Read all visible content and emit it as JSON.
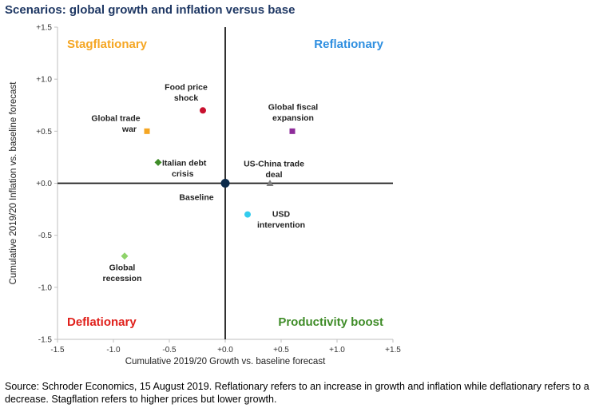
{
  "title": "Scenarios: global growth and inflation versus base",
  "source": "Source: Schroder Economics, 15 August 2019. Reflationary refers to an increase in growth and inflation while deflationary refers to a decrease. Stagflation refers to higher prices but lower growth.",
  "chart_data": {
    "type": "scatter",
    "xlabel": "Cumulative 2019/20 Growth vs. baseline forecast",
    "ylabel": "Cumulative 2019/20 Inflation vs. baseline forecast",
    "xlim": [
      -1.5,
      1.5
    ],
    "ylim": [
      -1.5,
      1.5
    ],
    "x_ticks": [
      {
        "value": -1.5,
        "label": "-1.5"
      },
      {
        "value": -1.0,
        "label": "-1.0"
      },
      {
        "value": -0.5,
        "label": "-0.5"
      },
      {
        "value": 0.0,
        "label": "+0.0"
      },
      {
        "value": 0.5,
        "label": "+0.5"
      },
      {
        "value": 1.0,
        "label": "+1.0"
      },
      {
        "value": 1.5,
        "label": "+1.5"
      }
    ],
    "y_ticks": [
      {
        "value": 1.5,
        "label": "+1.5"
      },
      {
        "value": 1.0,
        "label": "+1.0"
      },
      {
        "value": 0.5,
        "label": "+0.5"
      },
      {
        "value": 0.0,
        "label": "+0.0"
      },
      {
        "value": -0.5,
        "label": "-0.5"
      },
      {
        "value": -1.0,
        "label": "-1.0"
      },
      {
        "value": -1.5,
        "label": "-1.5"
      }
    ],
    "grid": false,
    "quadrants": [
      {
        "label": "Stagflationary",
        "position": "top-left",
        "color": "#f5a623"
      },
      {
        "label": "Reflationary",
        "position": "top-right",
        "color": "#2f8fe0"
      },
      {
        "label": "Deflationary",
        "position": "bottom-left",
        "color": "#e0201b"
      },
      {
        "label": "Productivity boost",
        "position": "bottom-right",
        "color": "#3f8c28"
      }
    ],
    "points": [
      {
        "name": "Food price shock",
        "lines": [
          "Food price",
          "shock"
        ],
        "x": -0.2,
        "y": 0.7,
        "marker": "circle",
        "color": "#c8102e",
        "label_pos": "above"
      },
      {
        "name": "Global trade war",
        "lines": [
          "Global trade",
          "war"
        ],
        "x": -0.7,
        "y": 0.5,
        "marker": "square",
        "color": "#f5a623",
        "label_pos": "left"
      },
      {
        "name": "Global fiscal expansion",
        "lines": [
          "Global fiscal",
          "expansion"
        ],
        "x": 0.6,
        "y": 0.5,
        "marker": "square",
        "color": "#8e2c9a",
        "label_pos": "above"
      },
      {
        "name": "Italian debt crisis",
        "lines": [
          "Italian debt",
          "crisis"
        ],
        "x": -0.6,
        "y": 0.2,
        "marker": "diamond",
        "color": "#3f8c28",
        "label_pos": "right"
      },
      {
        "name": "Baseline",
        "lines": [
          "Baseline"
        ],
        "x": 0.0,
        "y": 0.0,
        "marker": "circle-large",
        "color": "#0b2a4a",
        "label_pos": "below-left"
      },
      {
        "name": "US-China trade deal",
        "lines": [
          "US-China trade",
          "deal"
        ],
        "x": 0.4,
        "y": 0.0,
        "marker": "triangle",
        "color": "#7f7f7f",
        "label_pos": "above"
      },
      {
        "name": "USD intervention",
        "lines": [
          "USD",
          "intervention"
        ],
        "x": 0.2,
        "y": -0.3,
        "marker": "circle",
        "color": "#33ccee",
        "label_pos": "below-right"
      },
      {
        "name": "Global recession",
        "lines": [
          "Global",
          "recession"
        ],
        "x": -0.9,
        "y": -0.7,
        "marker": "diamond",
        "color": "#8fd36a",
        "label_pos": "below"
      }
    ]
  }
}
